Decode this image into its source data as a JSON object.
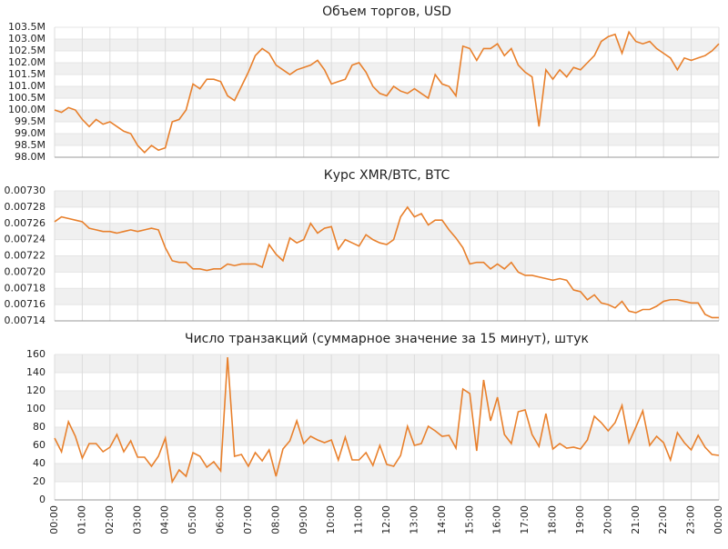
{
  "chart_data": [
    {
      "type": "line",
      "title": "Объем торгов, USD",
      "color": "#e8802c",
      "grid": true,
      "ylim": [
        98.0,
        103.5
      ],
      "yticks": [
        {
          "value": 98.0,
          "label": "98.0M"
        },
        {
          "value": 98.5,
          "label": "98.5M"
        },
        {
          "value": 99.0,
          "label": "99.0M"
        },
        {
          "value": 99.5,
          "label": "99.5M"
        },
        {
          "value": 100.0,
          "label": "100.0M"
        },
        {
          "value": 100.5,
          "label": "100.5M"
        },
        {
          "value": 101.0,
          "label": "101.0M"
        },
        {
          "value": 101.5,
          "label": "101.5M"
        },
        {
          "value": 102.0,
          "label": "102.0M"
        },
        {
          "value": 102.5,
          "label": "102.5M"
        },
        {
          "value": 103.0,
          "label": "103.0M"
        },
        {
          "value": 103.5,
          "label": "103.5M"
        }
      ],
      "values": [
        100.0,
        99.9,
        100.1,
        100.0,
        99.6,
        99.3,
        99.6,
        99.4,
        99.5,
        99.3,
        99.1,
        99.0,
        98.5,
        98.2,
        98.5,
        98.3,
        98.4,
        99.5,
        99.6,
        100.0,
        101.1,
        100.9,
        101.3,
        101.3,
        101.2,
        100.6,
        100.4,
        101.0,
        101.6,
        102.3,
        102.6,
        102.4,
        101.9,
        101.7,
        101.5,
        101.7,
        101.8,
        101.9,
        102.1,
        101.7,
        101.1,
        101.2,
        101.3,
        101.9,
        102.0,
        101.6,
        101.0,
        100.7,
        100.6,
        101.0,
        100.8,
        100.7,
        100.9,
        100.7,
        100.5,
        101.5,
        101.1,
        101.0,
        100.6,
        102.7,
        102.6,
        102.1,
        102.6,
        102.6,
        102.8,
        102.3,
        102.6,
        101.9,
        101.6,
        101.4,
        99.3,
        101.7,
        101.3,
        101.7,
        101.4,
        101.8,
        101.7,
        102.0,
        102.3,
        102.9,
        103.1,
        103.2,
        102.4,
        103.3,
        102.9,
        102.8,
        102.9,
        102.6,
        102.4,
        102.2,
        101.7,
        102.2,
        102.1,
        102.2,
        102.3,
        102.5,
        102.8
      ]
    },
    {
      "type": "line",
      "title": "Курс XMR/BTC, BTC",
      "color": "#e8802c",
      "grid": true,
      "ylim": [
        0.00714,
        0.0073
      ],
      "yticks": [
        {
          "value": 0.00714,
          "label": "0.00714"
        },
        {
          "value": 0.00716,
          "label": "0.00716"
        },
        {
          "value": 0.00718,
          "label": "0.00718"
        },
        {
          "value": 0.0072,
          "label": "0.00720"
        },
        {
          "value": 0.00722,
          "label": "0.00722"
        },
        {
          "value": 0.00724,
          "label": "0.00724"
        },
        {
          "value": 0.00726,
          "label": "0.00726"
        },
        {
          "value": 0.00728,
          "label": "0.00728"
        },
        {
          "value": 0.0073,
          "label": "0.00730"
        }
      ],
      "values": [
        0.007262,
        0.007268,
        0.007266,
        0.007264,
        0.007262,
        0.007254,
        0.007252,
        0.00725,
        0.00725,
        0.007248,
        0.00725,
        0.007252,
        0.00725,
        0.007252,
        0.007254,
        0.007252,
        0.00723,
        0.007214,
        0.007212,
        0.007212,
        0.007204,
        0.007204,
        0.007202,
        0.007204,
        0.007204,
        0.00721,
        0.007208,
        0.00721,
        0.00721,
        0.00721,
        0.007206,
        0.007234,
        0.007222,
        0.007214,
        0.007242,
        0.007236,
        0.00724,
        0.00726,
        0.007248,
        0.007254,
        0.007256,
        0.007228,
        0.00724,
        0.007236,
        0.007232,
        0.007246,
        0.00724,
        0.007236,
        0.007234,
        0.00724,
        0.007268,
        0.00728,
        0.007268,
        0.007272,
        0.007258,
        0.007264,
        0.007264,
        0.007252,
        0.007242,
        0.00723,
        0.00721,
        0.007212,
        0.007212,
        0.007204,
        0.00721,
        0.007204,
        0.007212,
        0.0072,
        0.007196,
        0.007196,
        0.007194,
        0.007192,
        0.00719,
        0.007192,
        0.00719,
        0.007178,
        0.007176,
        0.007166,
        0.007172,
        0.007162,
        0.00716,
        0.007156,
        0.007164,
        0.007152,
        0.00715,
        0.007154,
        0.007154,
        0.007158,
        0.007164,
        0.007166,
        0.007166,
        0.007164,
        0.007162,
        0.007162,
        0.007148,
        0.007144,
        0.007144
      ]
    },
    {
      "type": "line",
      "title": "Число транзакций (суммарное значение за 15 минут), штук",
      "color": "#e8802c",
      "grid": true,
      "ylim": [
        0,
        160
      ],
      "yticks": [
        0,
        20,
        40,
        60,
        80,
        100,
        120,
        140,
        160
      ],
      "xticks": [
        "00:00",
        "01:00",
        "02:00",
        "03:00",
        "04:00",
        "05:00",
        "06:00",
        "07:00",
        "08:00",
        "09:00",
        "10:00",
        "11:00",
        "12:00",
        "13:00",
        "14:00",
        "15:00",
        "16:00",
        "17:00",
        "18:00",
        "19:00",
        "20:00",
        "21:00",
        "22:00",
        "23:00",
        "00:00"
      ],
      "values": [
        68,
        53,
        86,
        70,
        46,
        62,
        62,
        53,
        58,
        72,
        53,
        65,
        47,
        47,
        37,
        48,
        68,
        20,
        33,
        26,
        52,
        48,
        36,
        42,
        32,
        157,
        48,
        50,
        37,
        52,
        43,
        55,
        26,
        56,
        65,
        87,
        62,
        70,
        66,
        63,
        66,
        44,
        69,
        44,
        44,
        52,
        38,
        60,
        39,
        37,
        49,
        81,
        60,
        62,
        81,
        76,
        70,
        71,
        57,
        122,
        117,
        54,
        132,
        87,
        113,
        72,
        62,
        97,
        99,
        72,
        59,
        95,
        56,
        62,
        57,
        58,
        56,
        66,
        92,
        85,
        76,
        85,
        104,
        63,
        80,
        98,
        60,
        70,
        63,
        44,
        74,
        63,
        55,
        71,
        58,
        50,
        49
      ]
    }
  ]
}
